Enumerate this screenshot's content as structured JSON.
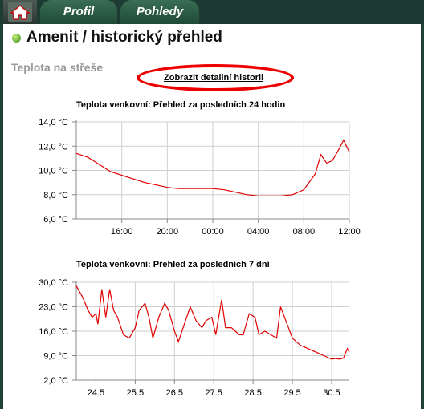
{
  "nav": {
    "tabs": [
      {
        "label": "Profil"
      },
      {
        "label": "Pohledy"
      }
    ]
  },
  "page": {
    "title": "Amenit / historický přehled",
    "section_title": "Teplota na střeše",
    "detail_link": "Zobrazit detailní historii"
  },
  "colors": {
    "line": "#e00000",
    "annotation": "#e00000",
    "nav": "#1d3a33"
  },
  "icons": {
    "home": "home-icon",
    "status": "status-dot-icon"
  },
  "chart_data": [
    {
      "type": "line",
      "title": "Teplota venkovní: Přehled za posledních 24 hodin",
      "ylim": [
        6,
        14
      ],
      "yticks": [
        "14,0 °C",
        "12,0 °C",
        "10,0 °C",
        "8,0 °C",
        "6,0 °C"
      ],
      "xticks": [
        "16:00",
        "20:00",
        "00:00",
        "04:00",
        "08:00",
        "12:00"
      ],
      "x_hours_range": [
        12,
        36
      ],
      "grid": true,
      "series": [
        {
          "x": [
            12.0,
            13.0,
            14.0,
            15.0,
            16.0,
            17.0,
            18.0,
            19.0,
            20.0,
            21.0,
            22.0,
            23.0,
            24.0,
            25.0,
            26.0,
            27.0,
            28.0,
            29.0,
            30.0,
            31.0,
            32.0,
            33.0,
            33.5,
            34.0,
            34.5,
            35.0,
            35.5,
            36.0
          ],
          "values": [
            11.4,
            11.1,
            10.5,
            9.9,
            9.6,
            9.3,
            9.0,
            8.8,
            8.6,
            8.5,
            8.5,
            8.5,
            8.5,
            8.4,
            8.2,
            8.0,
            7.9,
            7.9,
            7.9,
            8.0,
            8.4,
            9.7,
            11.3,
            10.6,
            10.8,
            11.6,
            12.5,
            11.5
          ]
        }
      ]
    },
    {
      "type": "line",
      "title": "Teplota venkovní: Přehled za posledních 7 dní",
      "ylim": [
        2,
        30
      ],
      "yticks": [
        "30,0 °C",
        "23,0 °C",
        "16,0 °C",
        "9,0 °C",
        "2,0 °C"
      ],
      "xticks": [
        "24.5",
        "25.5",
        "26.5",
        "27.5",
        "28.5",
        "29.5",
        "30.5"
      ],
      "x_range": [
        24.0,
        30.95
      ],
      "grid": true,
      "series": [
        {
          "x": [
            24.0,
            24.15,
            24.3,
            24.4,
            24.5,
            24.55,
            24.65,
            24.75,
            24.85,
            24.95,
            25.05,
            25.2,
            25.35,
            25.5,
            25.6,
            25.75,
            25.85,
            25.95,
            26.1,
            26.25,
            26.35,
            26.5,
            26.6,
            26.75,
            26.9,
            27.05,
            27.2,
            27.3,
            27.45,
            27.55,
            27.7,
            27.8,
            27.95,
            28.05,
            28.15,
            28.25,
            28.4,
            28.55,
            28.65,
            28.8,
            28.95,
            29.1,
            29.2,
            29.3,
            29.5,
            29.7,
            29.9,
            30.1,
            30.3,
            30.5,
            30.6,
            30.7,
            30.8,
            30.9,
            30.95
          ],
          "values": [
            29,
            26,
            22,
            20,
            21,
            18,
            28,
            20,
            28,
            22,
            20,
            15,
            14,
            17,
            22,
            24,
            20,
            14,
            20,
            24,
            22,
            16,
            13,
            18,
            23,
            19,
            17,
            19,
            20,
            15,
            25,
            17,
            17,
            16,
            15,
            15,
            21,
            20,
            15,
            16,
            15,
            14,
            23,
            20,
            14,
            12,
            11,
            10,
            9,
            8,
            8.2,
            8,
            8.3,
            11,
            10
          ]
        }
      ]
    }
  ]
}
